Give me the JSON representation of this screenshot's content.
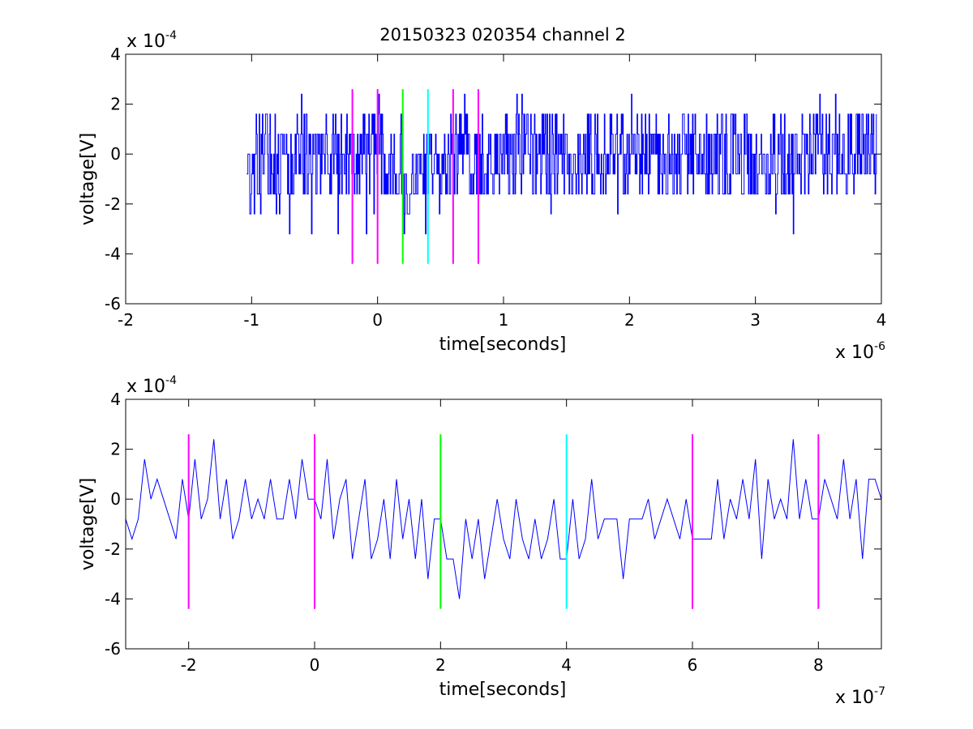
{
  "chart_data": [
    {
      "type": "line",
      "title": "20150323 020354 channel 2",
      "xlabel": "time[seconds]",
      "ylabel": "voltage[V]",
      "x_multiplier": "x 10",
      "x_multiplier_exp": "-6",
      "y_multiplier": "x 10",
      "y_multiplier_exp": "-4",
      "xlim": [
        -2,
        4
      ],
      "ylim": [
        -6,
        4
      ],
      "xticks": [
        -2,
        -1,
        0,
        1,
        2,
        3,
        4
      ],
      "xtick_labels": [
        "-2",
        "-1",
        "0",
        "1",
        "2",
        "3",
        "4"
      ],
      "yticks": [
        -6,
        -4,
        -2,
        0,
        2,
        4
      ],
      "ytick_labels": [
        "-6",
        "-4",
        "-2",
        "0",
        "2",
        "4"
      ],
      "grid": false,
      "series": [
        {
          "color": "#0000ff",
          "x_start": -1.04,
          "x_end": 3.96,
          "levels": [
            -3.2,
            -2.4,
            -1.6,
            -0.8,
            0,
            0.8,
            1.6,
            2.4
          ],
          "x": [
            -1.04,
            -0.9,
            -0.8,
            -0.65,
            -0.5,
            -0.35,
            -0.2,
            -0.05,
            0.1,
            0.2,
            0.3,
            0.4,
            0.5,
            0.6,
            0.7,
            0.8,
            1.0,
            1.3,
            1.6,
            1.9,
            2.2,
            2.5,
            2.8,
            3.1,
            3.4,
            3.7,
            3.96
          ],
          "y": [
            -2.4,
            0.8,
            -0.8,
            0.0,
            -0.8,
            0.0,
            -0.8,
            0.8,
            -0.8,
            -1.6,
            -2.4,
            -0.8,
            -0.8,
            0.0,
            0.8,
            -0.8,
            0.0,
            0.0,
            -0.8,
            0.0,
            0.0,
            0.0,
            0.0,
            -0.8,
            0.0,
            0.0,
            0.8
          ]
        },
        {
          "name": "markers",
          "vlines": [
            {
              "x": -0.2,
              "ymin": -4.4,
              "ymax": 2.6,
              "color": "#ff00ff"
            },
            {
              "x": 0.0,
              "ymin": -4.4,
              "ymax": 2.6,
              "color": "#ff00ff"
            },
            {
              "x": 0.2,
              "ymin": -4.4,
              "ymax": 2.6,
              "color": "#00ff00"
            },
            {
              "x": 0.4,
              "ymin": -4.4,
              "ymax": 2.6,
              "color": "#00ffff"
            },
            {
              "x": 0.6,
              "ymin": -4.4,
              "ymax": 2.6,
              "color": "#ff00ff"
            },
            {
              "x": 0.8,
              "ymin": -4.4,
              "ymax": 2.6,
              "color": "#ff00ff"
            }
          ]
        }
      ]
    },
    {
      "type": "line",
      "xlabel": "time[seconds]",
      "ylabel": "voltage[V]",
      "x_multiplier": "x 10",
      "x_multiplier_exp": "-7",
      "y_multiplier": "x 10",
      "y_multiplier_exp": "-4",
      "xlim": [
        -3,
        9
      ],
      "ylim": [
        -6,
        4
      ],
      "xticks": [
        -2,
        0,
        2,
        4,
        6,
        8
      ],
      "xtick_labels": [
        "-2",
        "0",
        "2",
        "4",
        "6",
        "8"
      ],
      "yticks": [
        -6,
        -4,
        -2,
        0,
        2,
        4
      ],
      "ytick_labels": [
        "-6",
        "-4",
        "-2",
        "0",
        "2",
        "4"
      ],
      "grid": false,
      "series": [
        {
          "color": "#0000ff",
          "x": [
            -3.0,
            -2.9,
            -2.8,
            -2.7,
            -2.6,
            -2.5,
            -2.4,
            -2.3,
            -2.2,
            -2.1,
            -2.0,
            -1.9,
            -1.8,
            -1.7,
            -1.6,
            -1.5,
            -1.4,
            -1.3,
            -1.2,
            -1.1,
            -1.0,
            -0.9,
            -0.8,
            -0.7,
            -0.6,
            -0.5,
            -0.4,
            -0.3,
            -0.2,
            -0.1,
            0.0,
            0.1,
            0.2,
            0.3,
            0.4,
            0.5,
            0.6,
            0.7,
            0.8,
            0.9,
            1.0,
            1.1,
            1.2,
            1.3,
            1.4,
            1.5,
            1.6,
            1.7,
            1.8,
            1.9,
            2.0,
            2.1,
            2.2,
            2.3,
            2.4,
            2.5,
            2.6,
            2.7,
            2.8,
            2.9,
            3.0,
            3.1,
            3.2,
            3.3,
            3.4,
            3.5,
            3.6,
            3.7,
            3.8,
            3.9,
            4.0,
            4.1,
            4.2,
            4.3,
            4.4,
            4.5,
            4.6,
            4.7,
            4.8,
            4.9,
            5.0,
            5.1,
            5.2,
            5.3,
            5.4,
            5.5,
            5.6,
            5.7,
            5.8,
            5.9,
            6.0,
            6.1,
            6.2,
            6.3,
            6.4,
            6.5,
            6.6,
            6.7,
            6.8,
            6.9,
            7.0,
            7.1,
            7.2,
            7.3,
            7.4,
            7.5,
            7.6,
            7.7,
            7.8,
            7.9,
            8.0,
            8.1,
            8.2,
            8.3,
            8.4,
            8.5,
            8.6,
            8.7,
            8.8,
            8.9,
            9.0
          ],
          "y": [
            -0.8,
            -1.6,
            -0.8,
            1.6,
            0.0,
            0.8,
            0.0,
            -0.8,
            -1.6,
            0.8,
            -0.8,
            1.6,
            -0.8,
            0.0,
            2.4,
            -0.8,
            0.8,
            -1.6,
            -0.8,
            0.8,
            -0.8,
            0.0,
            -0.8,
            0.8,
            -0.8,
            -0.8,
            0.8,
            -0.8,
            1.6,
            0.0,
            0.0,
            -0.8,
            1.6,
            -1.6,
            0.0,
            0.8,
            -2.4,
            -0.8,
            0.8,
            -2.4,
            -1.6,
            0.0,
            -2.4,
            0.8,
            -1.6,
            0.0,
            -2.4,
            0.0,
            -3.2,
            -0.8,
            -0.8,
            -2.4,
            -2.4,
            -4.0,
            -0.8,
            -2.4,
            -0.8,
            -3.2,
            -1.6,
            0.0,
            -1.6,
            -2.4,
            0.0,
            -1.6,
            -2.4,
            -0.8,
            -2.4,
            -1.6,
            0.0,
            -2.4,
            -2.4,
            0.0,
            -2.4,
            -1.6,
            0.8,
            -1.6,
            -0.8,
            -0.8,
            -0.8,
            -3.2,
            -0.8,
            -0.8,
            -0.8,
            0.0,
            -1.6,
            -0.8,
            0.0,
            -0.8,
            -1.6,
            0.0,
            -1.6,
            -1.6,
            -1.6,
            -1.6,
            0.8,
            -1.6,
            0.0,
            -0.8,
            0.8,
            -0.8,
            1.6,
            -2.4,
            0.8,
            -0.8,
            0.0,
            -0.8,
            2.4,
            -0.8,
            0.8,
            -0.8,
            -0.8,
            0.8,
            0.0,
            -0.8,
            1.6,
            -0.8,
            0.8,
            -2.4,
            0.8,
            0.8,
            0.0
          ]
        },
        {
          "name": "markers",
          "vlines": [
            {
              "x": -2.0,
              "ymin": -4.4,
              "ymax": 2.6,
              "color": "#ff00ff"
            },
            {
              "x": 0.0,
              "ymin": -4.4,
              "ymax": 2.6,
              "color": "#ff00ff"
            },
            {
              "x": 2.0,
              "ymin": -4.4,
              "ymax": 2.6,
              "color": "#00ff00"
            },
            {
              "x": 4.0,
              "ymin": -4.4,
              "ymax": 2.6,
              "color": "#00ffff"
            },
            {
              "x": 6.0,
              "ymin": -4.4,
              "ymax": 2.6,
              "color": "#ff00ff"
            },
            {
              "x": 8.0,
              "ymin": -4.4,
              "ymax": 2.6,
              "color": "#ff00ff"
            }
          ]
        }
      ]
    }
  ]
}
